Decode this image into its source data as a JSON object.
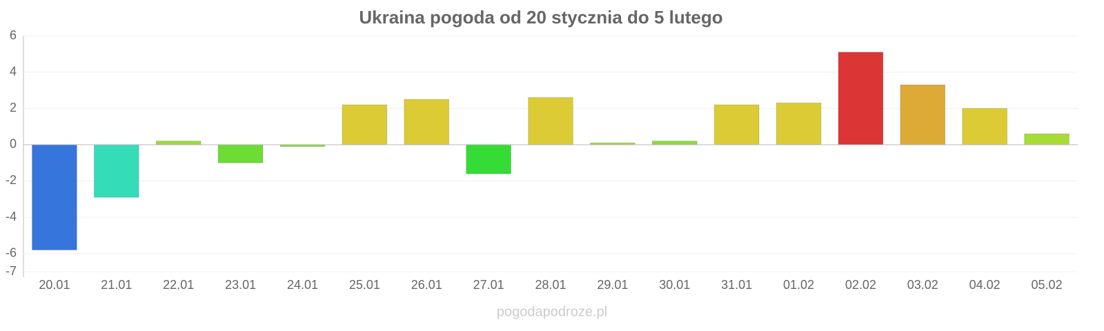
{
  "chart_data": {
    "type": "bar",
    "title": "Ukraina pogoda od 20 stycznia do 5 lutego",
    "categories": [
      "20.01",
      "21.01",
      "22.01",
      "23.01",
      "24.01",
      "25.01",
      "26.01",
      "27.01",
      "28.01",
      "29.01",
      "30.01",
      "31.01",
      "01.02",
      "02.02",
      "03.02",
      "04.02",
      "05.02"
    ],
    "values": [
      -5.8,
      -2.9,
      0.2,
      -1.0,
      -0.1,
      2.2,
      2.5,
      -1.6,
      2.6,
      0.1,
      0.2,
      2.2,
      2.3,
      5.1,
      3.3,
      2.0,
      0.6
    ],
    "colors": [
      "#3575dc",
      "#35dcb8",
      "#9adc35",
      "#6ddc35",
      "#7fdc35",
      "#dccb35",
      "#dccb35",
      "#35dc35",
      "#dccb35",
      "#9adc35",
      "#8adc35",
      "#dccb35",
      "#dccb35",
      "#dc3535",
      "#dcaa35",
      "#dccb35",
      "#a8dc35"
    ],
    "ylim": [
      -7,
      6
    ],
    "yticks": [
      -7,
      -6,
      -4,
      -2,
      0,
      2,
      4,
      6
    ],
    "grid": true,
    "source": "pogodapodroze.pl"
  }
}
